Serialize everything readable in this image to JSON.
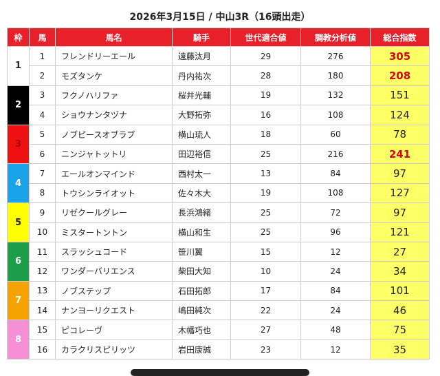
{
  "title": "2026年3月15日 / 中山3R（16頭出走）",
  "headers": [
    "枠",
    "馬",
    "馬名",
    "騎手",
    "世代適合値",
    "調教分析値",
    "総合指数"
  ],
  "frames": [
    {
      "number": 1,
      "color": "#ffffff",
      "text_color": "#222222",
      "span": 2
    },
    {
      "number": 2,
      "color": "#000000",
      "text_color": "#ffffff",
      "span": 2
    },
    {
      "number": 3,
      "color": "#ee1111",
      "text_color": "#aa0000",
      "span": 2
    },
    {
      "number": 4,
      "color": "#1aa3e8",
      "text_color": "#ffffff",
      "span": 2
    },
    {
      "number": 5,
      "color": "#ffff00",
      "text_color": "#222222",
      "span": 2
    },
    {
      "number": 6,
      "color": "#1a9e4a",
      "text_color": "#ffffff",
      "span": 2
    },
    {
      "number": 7,
      "color": "#f5a300",
      "text_color": "#ffffff",
      "span": 2
    },
    {
      "number": 8,
      "color": "#f58fd6",
      "text_color": "#ffffff",
      "span": 2
    }
  ],
  "rows": [
    {
      "no": 1,
      "name": "フレンドリーエール",
      "jockey": "遠藤汰月",
      "gen": 29,
      "training": 276,
      "total": 305,
      "total_color": "#e00000"
    },
    {
      "no": 2,
      "name": "モズタンケ",
      "jockey": "丹内祐次",
      "gen": 28,
      "training": 180,
      "total": 208,
      "total_color": "#e00000"
    },
    {
      "no": 3,
      "name": "フクノハリファ",
      "jockey": "桜井光輔",
      "gen": 19,
      "training": 132,
      "total": 151
    },
    {
      "no": 4,
      "name": "ショウナンタヅナ",
      "jockey": "大野拓弥",
      "gen": 16,
      "training": 108,
      "total": 124
    },
    {
      "no": 5,
      "name": "ノブピースオブラブ",
      "jockey": "横山琉人",
      "gen": 18,
      "training": 60,
      "total": 78
    },
    {
      "no": 6,
      "name": "ニンジャトットリ",
      "jockey": "田辺裕信",
      "gen": 25,
      "training": 216,
      "total": 241,
      "total_color": "#e00000"
    },
    {
      "no": 7,
      "name": "エールオンマインド",
      "jockey": "西村太一",
      "gen": 13,
      "training": 84,
      "total": 97
    },
    {
      "no": 8,
      "name": "トウシンライオット",
      "jockey": "佐々木大",
      "gen": 19,
      "training": 108,
      "total": 127
    },
    {
      "no": 9,
      "name": "リゼクールグレー",
      "jockey": "長浜鴻緒",
      "gen": 25,
      "training": 72,
      "total": 97
    },
    {
      "no": 10,
      "name": "ミスタートントン",
      "jockey": "横山和生",
      "gen": 25,
      "training": 96,
      "total": 121
    },
    {
      "no": 11,
      "name": "スラッシュコード",
      "jockey": "笹川翼",
      "gen": 15,
      "training": 12,
      "total": 27
    },
    {
      "no": 12,
      "name": "ワンダーバリエンス",
      "jockey": "柴田大知",
      "gen": 10,
      "training": 24,
      "total": 34
    },
    {
      "no": 13,
      "name": "ノブステップ",
      "jockey": "石田拓郎",
      "gen": 17,
      "training": 84,
      "total": 101
    },
    {
      "no": 14,
      "name": "ナンヨーリクエスト",
      "jockey": "嶋田純次",
      "gen": 22,
      "training": 24,
      "total": 46
    },
    {
      "no": 15,
      "name": "ピコレーヴ",
      "jockey": "木幡巧也",
      "gen": 27,
      "training": 48,
      "total": 75
    },
    {
      "no": 16,
      "name": "カラクリスピリッツ",
      "jockey": "岩田康誠",
      "gen": 23,
      "training": 12,
      "total": 35
    }
  ]
}
